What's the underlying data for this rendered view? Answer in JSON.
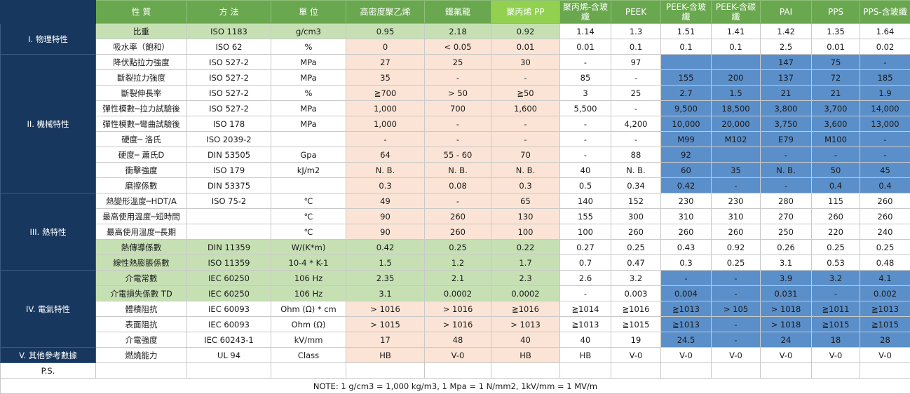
{
  "headers": [
    "",
    "性 質",
    "方 法",
    "單 位",
    "高密度聚乙烯",
    "鐵氟龍",
    "聚丙烯      PP",
    "聚丙烯-含玻纖",
    "PEEK",
    "PEEK-含玻纖",
    "PEEK-含碳纖",
    "PAI",
    "PPS",
    "PPS-含玻纖"
  ],
  "categories": {
    "c1": "I. 物理特性",
    "c2": "II. 機械特性",
    "c3": "III. 熱特性",
    "c4": "IV. 電氣特性",
    "c5": "V. 其他參考數據"
  },
  "rows": [
    {
      "cells": [
        "比重",
        "ISO 1183",
        "g/cm3",
        "0.95",
        "2.18",
        "0.92",
        "1.14",
        "1.3",
        "1.51",
        "1.41",
        "1.42",
        "1.35",
        "1.64"
      ]
    },
    {
      "cells": [
        "吸水率（飽和）",
        "ISO 62",
        "%",
        "0",
        "< 0.05",
        "0.01",
        "0.01",
        "0.1",
        "0.1",
        "0.1",
        "2.5",
        "0.01",
        "0.02"
      ]
    },
    {
      "cells": [
        "降伏點拉力強度",
        "ISO 527-2",
        "MPa",
        "27",
        "25",
        "30",
        "-",
        "97",
        "",
        "",
        "147",
        "75",
        "-"
      ]
    },
    {
      "cells": [
        "斷裂拉力強度",
        "ISO 527-2",
        "MPa",
        "35",
        "-",
        "-",
        "85",
        "-",
        "155",
        "200",
        "137",
        "72",
        "185"
      ]
    },
    {
      "cells": [
        "斷裂伸長率",
        "ISO 527-2",
        "%",
        "≧700",
        "> 50",
        "≧50",
        "3",
        "25",
        "2.7",
        "1.5",
        "21",
        "21",
        "1.9"
      ]
    },
    {
      "cells": [
        "彈性模數─拉力試驗後",
        "ISO 527-2",
        "MPa",
        "1,000",
        "700",
        "1,600",
        "5,500",
        "-",
        "9,500",
        "18,500",
        "3,800",
        "3,700",
        "14,000"
      ]
    },
    {
      "cells": [
        "彈性模數─彎曲試驗後",
        "ISO 178",
        "MPa",
        "1,000",
        "-",
        "-",
        "-",
        "4,200",
        "10,000",
        "20,000",
        "3,750",
        "3,600",
        "13,000"
      ]
    },
    {
      "cells": [
        "硬度─ 洛氏",
        "ISO 2039-2",
        "",
        "-",
        "-",
        "-",
        "-",
        "-",
        "M99",
        "M102",
        "E79",
        "M100",
        "-"
      ]
    },
    {
      "cells": [
        "硬度─ 蕭氏D",
        "DIN 53505",
        "Gpa",
        "64",
        "55 - 60",
        "70",
        "-",
        "88",
        "92",
        "",
        "-",
        "-",
        "-"
      ]
    },
    {
      "cells": [
        "衝擊強度",
        "ISO 179",
        "kJ/m2",
        "N. B.",
        "N. B.",
        "N. B.",
        "40",
        "N. B.",
        "60",
        "35",
        "N. B.",
        "50",
        "45"
      ]
    },
    {
      "cells": [
        "磨擦係數",
        "DIN 53375",
        "",
        "0.3",
        "0.08",
        "0.3",
        "0.5",
        "0.34",
        "0.42",
        "-",
        "-",
        "0.4",
        "0.4"
      ]
    },
    {
      "cells": [
        "熱變形溫度─HDT/A",
        "ISO 75-2",
        "℃",
        "49",
        "-",
        "65",
        "140",
        "152",
        "230",
        "230",
        "280",
        "115",
        "260"
      ]
    },
    {
      "cells": [
        "最高使用溫度─短時間",
        "",
        "℃",
        "90",
        "260",
        "130",
        "155",
        "300",
        "310",
        "310",
        "270",
        "260",
        "260"
      ]
    },
    {
      "cells": [
        "最高使用溫度─長期",
        "",
        "℃",
        "90",
        "260",
        "100",
        "100",
        "260",
        "260",
        "260",
        "250",
        "220",
        "240"
      ]
    },
    {
      "cells": [
        "熱傳導係數",
        "DIN 11359",
        "W/(K*m)",
        "0.42",
        "0.25",
        "0.22",
        "0.27",
        "0.25",
        "0.43",
        "0.92",
        "0.26",
        "0.25",
        "0.25"
      ]
    },
    {
      "cells": [
        "線性熱膨脹係數",
        "ISO 11359",
        "10-4 * K-1",
        "1.5",
        "1.2",
        "1.7",
        "0.7",
        "0.47",
        "0.3",
        "0.25",
        "3.1",
        "0.53",
        "0.48"
      ]
    },
    {
      "cells": [
        "介電常數",
        "IEC 60250",
        "106 Hz",
        "2.35",
        "2.1",
        "2.3",
        "2.6",
        "3.2",
        "-",
        "-",
        "3.9",
        "3.2",
        "4.1"
      ]
    },
    {
      "cells": [
        "介電損失係數 TD",
        "IEC 60250",
        "106 Hz",
        "3.1",
        "0.0002",
        "0.0002",
        "-",
        "0.003",
        "0.004",
        "-",
        "0.031",
        "-",
        "0.002"
      ]
    },
    {
      "cells": [
        "體積阻抗",
        "IEC 60093",
        "Ohm (Ω) * cm",
        "> 1016",
        "> 1016",
        "≧1016",
        "≧1014",
        "≧1016",
        "≧1013",
        "> 105",
        "> 1018",
        "≧1011",
        "≧1013"
      ]
    },
    {
      "cells": [
        "表面阻抗",
        "IEC 60093",
        "Ohm (Ω)",
        "> 1015",
        "> 1016",
        "> 1013",
        "≧1013",
        "≧1015",
        "≧1013",
        "-",
        "> 1018",
        "≧1015",
        "≧1015"
      ]
    },
    {
      "cells": [
        "介電強度",
        "IEC 60243-1",
        "kV/mm",
        "17",
        "48",
        "40",
        "40",
        "19",
        "24.5",
        "-",
        "24",
        "18",
        "28"
      ]
    },
    {
      "cells": [
        "燃燒能力",
        "UL 94",
        "Class",
        "HB",
        "V-0",
        "HB",
        "HB",
        "V-0",
        "V-0",
        "V-0",
        "V-0",
        "V-0",
        "V-0"
      ]
    }
  ],
  "ps": "P.S.",
  "note": "NOTE: 1 g/cm3 = 1,000 kg/m3, 1 Mpa = 1 N/mm2, 1kV/mm = 1 MV/m",
  "colors": {
    "header_green": "#6aa84f",
    "light_green": "#c6e0b4",
    "peach": "#fbe4d5",
    "blue": "#5b8fc9",
    "navy": "#17375e"
  }
}
